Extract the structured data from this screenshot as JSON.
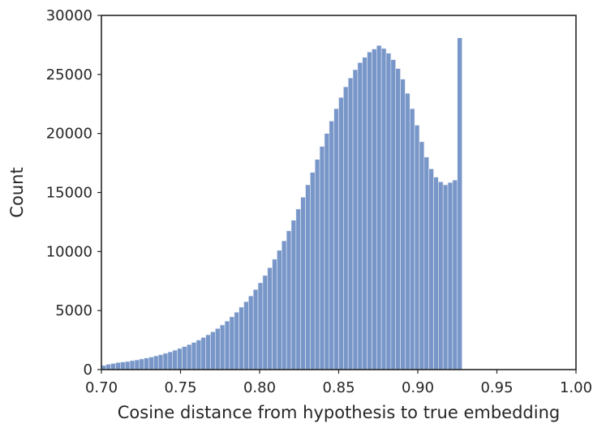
{
  "chart_data": {
    "type": "bar",
    "subtype": "histogram",
    "title": "",
    "xlabel": "Cosine distance from hypothesis to true embedding",
    "ylabel": "Count",
    "xlim": [
      0.7,
      1.0
    ],
    "ylim": [
      0,
      30000
    ],
    "xticks": [
      "0.70",
      "0.75",
      "0.80",
      "0.85",
      "0.90",
      "0.95",
      "1.00"
    ],
    "yticks": [
      "0",
      "5000",
      "10000",
      "15000",
      "20000",
      "25000",
      "30000"
    ],
    "grid": false,
    "legend": "none",
    "bar_color": "#7896c8",
    "bar_edge_color": "#e8eef7",
    "axis_color": "#262626",
    "bins": {
      "start": 0.7,
      "width": 0.003,
      "counts": [
        350,
        450,
        520,
        600,
        640,
        690,
        760,
        820,
        900,
        980,
        1060,
        1160,
        1260,
        1380,
        1500,
        1640,
        1790,
        1950,
        2120,
        2300,
        2500,
        2720,
        2950,
        3200,
        3480,
        3780,
        4110,
        4470,
        4860,
        5290,
        5750,
        6240,
        6780,
        7350,
        7970,
        8630,
        9350,
        10100,
        10900,
        11750,
        12650,
        13600,
        14600,
        15650,
        16700,
        17800,
        18900,
        20000,
        21050,
        22100,
        23050,
        23950,
        24700,
        25400,
        26000,
        26450,
        26900,
        27150,
        27450,
        27200,
        26800,
        26250,
        25500,
        24600,
        23400,
        22100,
        20700,
        19300,
        18000,
        17000,
        16300,
        15900,
        15650,
        15850,
        16050,
        28100
      ]
    }
  }
}
